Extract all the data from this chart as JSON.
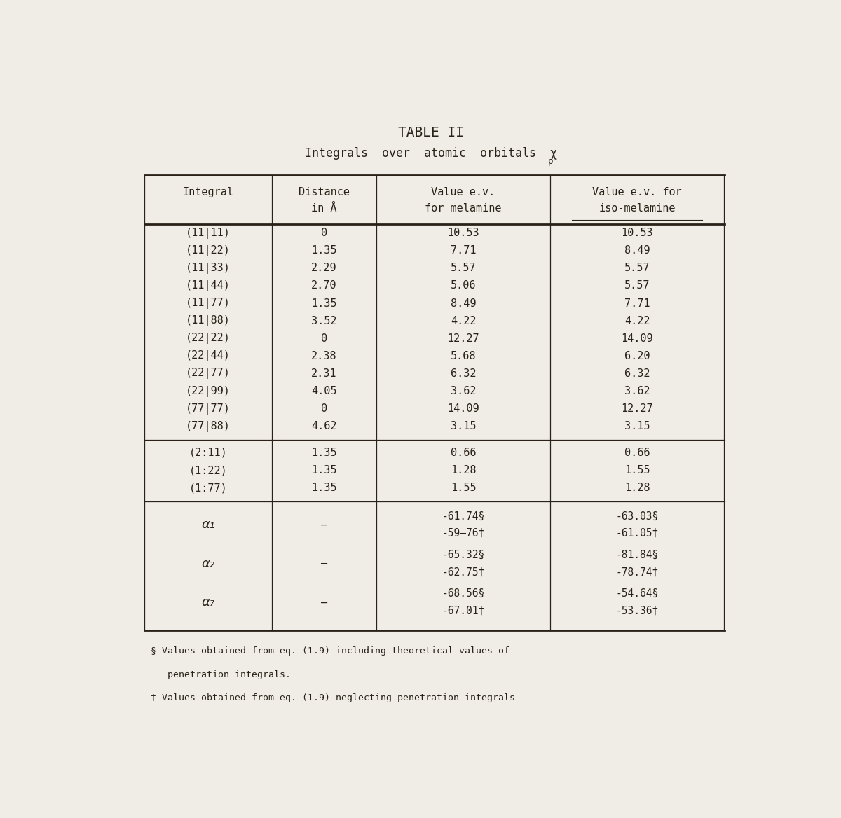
{
  "title": "TABLE II",
  "subtitle": "Integrals  over  atomic  orbitals  χ",
  "subtitle_p": "p",
  "bg_color": "#f0ede6",
  "col_headers_line1": [
    "Integral",
    "Distance",
    "Value e.v.",
    "Value e.v. for"
  ],
  "col_headers_line2": [
    "",
    "in Å",
    "for melamine",
    "iso-melamine"
  ],
  "rows": [
    [
      "(11|11)",
      "0",
      "10.53",
      "10.53"
    ],
    [
      "(11|22)",
      "1.35",
      "7.71",
      "8.49"
    ],
    [
      "(11|33)",
      "2.29",
      "5.57",
      "5.57"
    ],
    [
      "(11|44)",
      "2.70",
      "5.06",
      "5.57"
    ],
    [
      "(11|77)",
      "1.35",
      "8.49",
      "7.71"
    ],
    [
      "(11|88)",
      "3.52",
      "4.22",
      "4.22"
    ],
    [
      "(22|22)",
      "0",
      "12.27",
      "14.09"
    ],
    [
      "(22|44)",
      "2.38",
      "5.68",
      "6.20"
    ],
    [
      "(22|77)",
      "2.31",
      "6.32",
      "6.32"
    ],
    [
      "(22|99)",
      "4.05",
      "3.62",
      "3.62"
    ],
    [
      "(77|77)",
      "0",
      "14.09",
      "12.27"
    ],
    [
      "(77|88)",
      "4.62",
      "3.15",
      "3.15"
    ],
    [
      "(2:11)",
      "1.35",
      "0.66",
      "0.66"
    ],
    [
      "(1:22)",
      "1.35",
      "1.28",
      "1.55"
    ],
    [
      "(1:77)",
      "1.35",
      "1.55",
      "1.28"
    ]
  ],
  "alpha_rows": [
    [
      "α₁",
      "–",
      "-61.74§",
      "-63.03§",
      "-59–76†",
      "-61.05†"
    ],
    [
      "α₂",
      "–",
      "-65.32§",
      "-81.84§",
      "-62.75†",
      "-78.74†"
    ],
    [
      "α₇",
      "–",
      "-68.56§",
      "-54.64§",
      "-67.01†",
      "-53.36†"
    ]
  ],
  "footnote1_sym": "§",
  "footnote1_text": " Values obtained from eq. (1.9) including theoretical values of",
  "footnote1_cont": "   penetration integrals.",
  "footnote2_sym": "†",
  "footnote2_text": " Values obtained from eq. (1.9) neglecting penetration integrals"
}
